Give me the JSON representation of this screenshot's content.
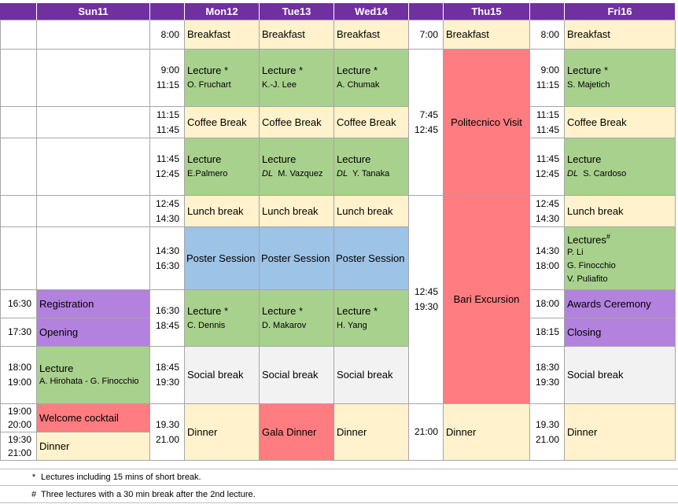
{
  "days": {
    "sun": "Sun11",
    "mon": "Mon12",
    "tue": "Tue13",
    "wed": "Wed14",
    "thu": "Thu15",
    "fri": "Fri16"
  },
  "sun": {
    "registration": {
      "time": "16:30",
      "label": "Registration"
    },
    "opening": {
      "time": "17:30",
      "label": "Opening"
    },
    "lecture": {
      "time_start": "18:00",
      "time_end": "19:00",
      "label": "Lecture",
      "speakers": "A. Hirohata - G. Finocchio"
    },
    "welcome": {
      "time_start": "19:00",
      "time_end": "20:00",
      "label": "Welcome cocktail"
    },
    "dinner": {
      "time_start": "19:30",
      "time_end": "21:00",
      "label": "Dinner"
    }
  },
  "mtw": {
    "breakfast_time": "8:00",
    "lecture1_start": "9:00",
    "lecture1_end": "11:15",
    "coffee_start": "11:15",
    "coffee_end": "11:45",
    "lecture2_start": "11:45",
    "lecture2_end": "12:45",
    "lunch_start": "12:45",
    "lunch_end": "14:30",
    "poster_start": "14:30",
    "poster_end": "16:30",
    "lecture3_start": "16:30",
    "lecture3_end": "18:45",
    "social_start": "18:45",
    "social_end": "19:30",
    "dinner_start": "19.30",
    "dinner_end": "21.00"
  },
  "mon": {
    "breakfast": "Breakfast",
    "lecture1": "Lecture *",
    "lecture1_speaker": "O. Fruchart",
    "coffee": "Coffee Break",
    "lecture2": "Lecture",
    "lecture2_speaker": "E.Palmero",
    "lunch": "Lunch break",
    "poster": "Poster Session",
    "lecture3": "Lecture *",
    "lecture3_speaker": "C. Dennis",
    "social": "Social break",
    "dinner": "Dinner"
  },
  "tue": {
    "breakfast": "Breakfast",
    "lecture1": "Lecture *",
    "lecture1_speaker": "K.-J. Lee",
    "coffee": "Coffee Break",
    "lecture2": "Lecture",
    "lecture2_dl": "DL",
    "lecture2_speaker": "M. Vazquez",
    "lunch": "Lunch break",
    "poster": "Poster Session",
    "lecture3": "Lecture *",
    "lecture3_speaker": "D. Makarov",
    "social": "Social break",
    "dinner": "Gala Dinner"
  },
  "wed": {
    "breakfast": "Breakfast",
    "lecture1": "Lecture *",
    "lecture1_speaker": "A. Chumak",
    "coffee": "Coffee Break",
    "lecture2": "Lecture",
    "lecture2_dl": "DL",
    "lecture2_speaker": "Y. Tanaka",
    "lunch": "Lunch break",
    "poster": "Poster Session",
    "lecture3": "Lecture *",
    "lecture3_speaker": "H. Yang",
    "social": "Social break",
    "dinner": "Dinner"
  },
  "thu": {
    "breakfast_time": "7:00",
    "breakfast": "Breakfast",
    "visit_start": "7:45",
    "visit_end": "12:45",
    "visit": "Politecnico Visit",
    "excursion_start": "12:45",
    "excursion_end": "19:30",
    "excursion": "Bari Excursion",
    "dinner_time": "21:00",
    "dinner": "Dinner"
  },
  "fri": {
    "breakfast_time": "8:00",
    "breakfast": "Breakfast",
    "lecture1_start": "9:00",
    "lecture1_end": "11:15",
    "lecture1": "Lecture *",
    "lecture1_speaker": "S. Majetich",
    "coffee_start": "11:15",
    "coffee_end": "11:45",
    "coffee": "Coffee Break",
    "lecture2_start": "11:45",
    "lecture2_end": "12:45",
    "lecture2": "Lecture",
    "lecture2_dl": "DL",
    "lecture2_speaker": "S. Cardoso",
    "lunch_start": "12:45",
    "lunch_end": "14:30",
    "lunch": "Lunch break",
    "lectures_start": "14:30",
    "lectures_end": "18:00",
    "lectures": "Lectures",
    "lectures_mark": "#",
    "lectures_speaker1": "P. Li",
    "lectures_speaker2": "G. Finocchio",
    "lectures_speaker3": "V. Puliafito",
    "awards_time": "18:00",
    "awards": "Awards Ceremony",
    "closing_time": "18:15",
    "closing": "Closing",
    "social_start": "18:30",
    "social_end": "19:30",
    "social": "Social break",
    "dinner_start": "19.30",
    "dinner_end": "21.00",
    "dinner": "Dinner"
  },
  "notes": [
    {
      "mark": "*",
      "text": "Lectures including 15 mins of short break."
    },
    {
      "mark": "#",
      "text": "Three lectures with a 30 min break after the 2nd lecture."
    }
  ]
}
